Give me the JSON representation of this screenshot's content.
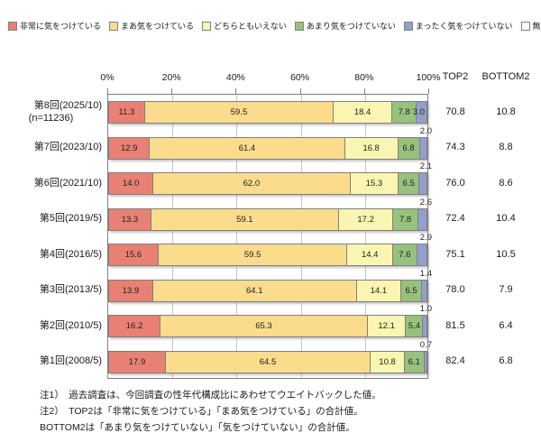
{
  "columns": {
    "top2": "TOP2",
    "bottom2": "BOTTOM2"
  },
  "notes": [
    "注1）　過去調査は、今回調査の性年代構成比にあわせてウエイトバックした値。",
    "注2）　TOP2は「非常に気をつけている」「まあ気をつけている」の合計値。",
    "BOTTOM2は「あまり気をつけていない」「気をつけていない」の合計値。"
  ],
  "chart_data": {
    "type": "bar",
    "variant": "horizontal-stacked",
    "unit": "%",
    "xlim": [
      0,
      100
    ],
    "x_ticks": [
      "0%",
      "20%",
      "40%",
      "60%",
      "80%",
      "100%"
    ],
    "grid": "vertical, every 20%",
    "legend_position": "top",
    "series": [
      {
        "name": "非常に気をつけている",
        "color": "#e88173"
      },
      {
        "name": "まあ気をつけている",
        "color": "#fbdc8d"
      },
      {
        "name": "どちらともいえない",
        "color": "#faf6b1"
      },
      {
        "name": "あまり気をつけていない",
        "color": "#97c17d"
      },
      {
        "name": "まったく気をつけていない",
        "color": "#93a0cb"
      },
      {
        "name": "無回答",
        "color": "#ffffff"
      }
    ],
    "rows": [
      {
        "label": "第8回(2025/10)",
        "sublabel": "(n=11236)",
        "values": [
          "11.3",
          "59.5",
          "18.4",
          "7.8",
          "3.0"
        ],
        "top2": "70.8",
        "bottom2": "10.8"
      },
      {
        "label": "第7回(2023/10)",
        "sublabel": "",
        "values": [
          "12.9",
          "61.4",
          "16.8",
          "6.8",
          "2.0"
        ],
        "top2": "74.3",
        "bottom2": "8.8"
      },
      {
        "label": "第6回(2021/10)",
        "sublabel": "",
        "values": [
          "14.0",
          "62.0",
          "15.3",
          "6.5",
          "2.1"
        ],
        "top2": "76.0",
        "bottom2": "8.6"
      },
      {
        "label": "第5回(2019/5)",
        "sublabel": "",
        "values": [
          "13.3",
          "59.1",
          "17.2",
          "7.8",
          "2.6"
        ],
        "top2": "72.4",
        "bottom2": "10.4"
      },
      {
        "label": "第4回(2016/5)",
        "sublabel": "",
        "values": [
          "15.6",
          "59.5",
          "14.4",
          "7.6",
          "2.9"
        ],
        "top2": "75.1",
        "bottom2": "10.5"
      },
      {
        "label": "第3回(2013/5)",
        "sublabel": "",
        "values": [
          "13.9",
          "64.1",
          "14.1",
          "6.5",
          "1.4"
        ],
        "top2": "78.0",
        "bottom2": "7.9"
      },
      {
        "label": "第2回(2010/5)",
        "sublabel": "",
        "values": [
          "16.2",
          "65.3",
          "12.1",
          "5.4",
          "1.0"
        ],
        "top2": "81.5",
        "bottom2": "6.4"
      },
      {
        "label": "第1回(2008/5)",
        "sublabel": "",
        "values": [
          "17.9",
          "64.5",
          "10.8",
          "6.1",
          "0.7"
        ],
        "top2": "82.4",
        "bottom2": "6.8"
      }
    ]
  }
}
